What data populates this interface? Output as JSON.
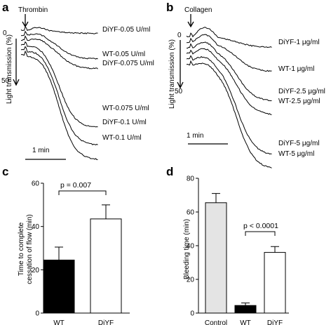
{
  "panel_labels": [
    "a",
    "b",
    "c",
    "d"
  ],
  "chart_data": [
    {
      "type": "line",
      "panel": "a",
      "agonist": "Thrombin",
      "ylabel": "Light transmission (%)",
      "y_ticks": [
        "0",
        "50"
      ],
      "scale_bar": "1 min",
      "series": [
        {
          "name": "DiYF-0.05 U/ml",
          "max_transmission": 2
        },
        {
          "name": "WT-0.05 U/ml",
          "max_transmission": 15
        },
        {
          "name": "DiYF-0.075 U/ml",
          "max_transmission": 18
        },
        {
          "name": "WT-0.075 U/ml",
          "max_transmission": 52
        },
        {
          "name": "DiYF-0.1 U/ml",
          "max_transmission": 60
        },
        {
          "name": "WT-0.1 U/ml",
          "max_transmission": 66
        }
      ]
    },
    {
      "type": "line",
      "panel": "b",
      "agonist": "Collagen",
      "ylabel": "Light transmission (%)",
      "y_ticks": [
        "0",
        "50"
      ],
      "scale_bar": "1 min",
      "series": [
        {
          "name": "DiYF-1 μg/ml",
          "max_transmission": 8
        },
        {
          "name": "WT-1 μg/ml",
          "max_transmission": 22
        },
        {
          "name": "DiYF-2.5 μg/ml",
          "max_transmission": 40
        },
        {
          "name": "WT-2.5 μg/ml",
          "max_transmission": 46
        },
        {
          "name": "DiYF-5 μg/ml",
          "max_transmission": 72
        },
        {
          "name": "WT-5 μg/ml",
          "max_transmission": 78
        }
      ]
    },
    {
      "type": "bar",
      "panel": "c",
      "categories": [
        "WT",
        "DiYF"
      ],
      "values": [
        24.5,
        43.5
      ],
      "errors": [
        6,
        6.5
      ],
      "fill_colors": [
        "#000000",
        "#ffffff"
      ],
      "ylabel": "Time to complete cessation of flow (min)",
      "ylabel_lines": [
        "Time to complete",
        "cessation of flow (min)"
      ],
      "ylim": [
        0,
        60
      ],
      "y_ticks": [
        0,
        20,
        40,
        60
      ],
      "annotation": "p = 0.007"
    },
    {
      "type": "bar",
      "panel": "d",
      "categories": [
        "Control",
        "WT",
        "DiYF"
      ],
      "values": [
        65.5,
        4.5,
        36
      ],
      "errors": [
        5.5,
        1.5,
        3.5
      ],
      "fill_colors": [
        "#e4e4e4",
        "#000000",
        "#ffffff"
      ],
      "ylabel": "Bleeding time (min)",
      "ylim": [
        0,
        80
      ],
      "y_ticks": [
        0,
        20,
        40,
        60,
        80
      ],
      "annotation": "p < 0.0001"
    }
  ]
}
